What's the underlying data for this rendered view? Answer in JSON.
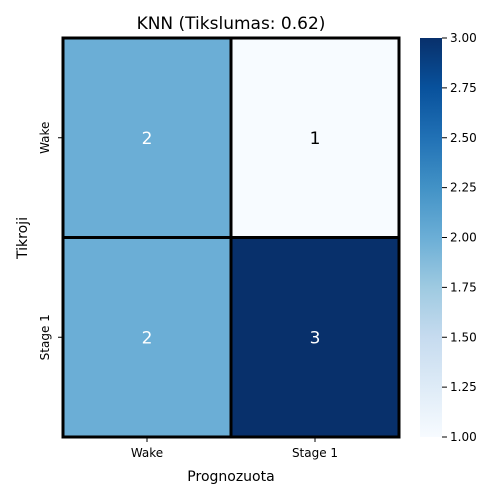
{
  "chart_data": {
    "type": "heatmap",
    "title": "KNN (Tikslumas: 0.62)",
    "xlabel": "Prognozuota",
    "ylabel": "Tikroji",
    "x_categories": [
      "Wake",
      "Stage 1"
    ],
    "y_categories": [
      "Wake",
      "Stage 1"
    ],
    "values": [
      [
        2,
        1
      ],
      [
        2,
        3
      ]
    ],
    "colorbar": {
      "min": 1.0,
      "max": 3.0,
      "ticks": [
        "1.00",
        "1.25",
        "1.50",
        "1.75",
        "2.00",
        "2.25",
        "2.50",
        "2.75",
        "3.00"
      ],
      "colormap": "Blues"
    }
  }
}
